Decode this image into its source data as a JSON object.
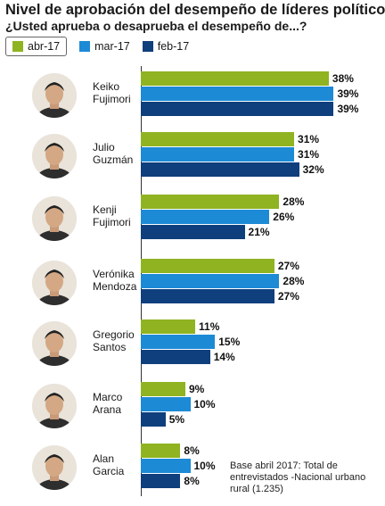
{
  "header": {
    "title": "Nivel de aprobación del desempeño de líderes políticos",
    "subtitle": "¿Usted aprueba o desaprueba el desempeño de...?"
  },
  "legend": [
    {
      "label": "abr-17",
      "color": "#8fb321"
    },
    {
      "label": "mar-17",
      "color": "#1d8ad6"
    },
    {
      "label": "feb-17",
      "color": "#0f3f7d"
    }
  ],
  "leaders": [
    {
      "line1": "Keiko",
      "line2": "Fujimori",
      "values": [
        38,
        39,
        39
      ],
      "labels": [
        "38%",
        "39%",
        "39%"
      ]
    },
    {
      "line1": "Julio",
      "line2": "Guzmán",
      "values": [
        31,
        31,
        32
      ],
      "labels": [
        "31%",
        "31%",
        "32%"
      ]
    },
    {
      "line1": "Kenji",
      "line2": "Fujimori",
      "values": [
        28,
        26,
        21
      ],
      "labels": [
        "28%",
        "26%",
        "21%"
      ]
    },
    {
      "line1": "Verónika",
      "line2": "Mendoza",
      "values": [
        27,
        28,
        27
      ],
      "labels": [
        "27%",
        "28%",
        "27%"
      ]
    },
    {
      "line1": "Gregorio",
      "line2": "Santos",
      "values": [
        11,
        15,
        14
      ],
      "labels": [
        "11%",
        "15%",
        "14%"
      ]
    },
    {
      "line1": "Marco",
      "line2": "Arana",
      "values": [
        9,
        10,
        5
      ],
      "labels": [
        "9%",
        "10%",
        "5%"
      ]
    },
    {
      "line1": "Alan",
      "line2": "Garcia",
      "values": [
        8,
        10,
        8
      ],
      "labels": [
        "8%",
        "10%",
        "8%"
      ]
    }
  ],
  "footnote": "Base abril 2017: Total de entrevistados -Nacional urbano rural (1.235)",
  "chart_data": {
    "type": "bar",
    "orientation": "horizontal",
    "title": "Nivel de aprobación del desempeño de líderes políticos",
    "subtitle": "¿Usted aprueba o desaprueba el desempeño de...?",
    "categories": [
      "Keiko Fujimori",
      "Julio Guzmán",
      "Kenji Fujimori",
      "Verónika Mendoza",
      "Gregorio Santos",
      "Marco Arana",
      "Alan Garcia"
    ],
    "series": [
      {
        "name": "abr-17",
        "values": [
          38,
          31,
          28,
          27,
          11,
          9,
          8
        ]
      },
      {
        "name": "mar-17",
        "values": [
          39,
          31,
          26,
          28,
          15,
          10,
          10
        ]
      },
      {
        "name": "feb-17",
        "values": [
          39,
          32,
          21,
          27,
          14,
          5,
          8
        ]
      }
    ],
    "unit": "%",
    "legend_position": "top-left",
    "grid": false
  }
}
